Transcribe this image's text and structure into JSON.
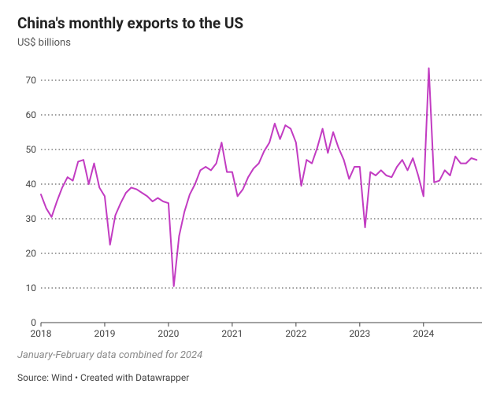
{
  "title": "China's monthly exports to the US",
  "subtitle": "US$ billions",
  "note": "January-February data combined for 2024",
  "source": "Source: Wind • Created with Datawrapper",
  "chart": {
    "type": "line",
    "line_color": "#c23cc2",
    "line_width": 2,
    "background_color": "#ffffff",
    "grid_color": "#000000",
    "grid_style": "dotted",
    "axis_color": "#444444",
    "ylim": [
      0,
      75
    ],
    "yticks": [
      0,
      10,
      20,
      30,
      40,
      50,
      60,
      70
    ],
    "xticks": [
      {
        "label": "2018",
        "x": 0
      },
      {
        "label": "2019",
        "x": 12
      },
      {
        "label": "2020",
        "x": 24
      },
      {
        "label": "2021",
        "x": 36
      },
      {
        "label": "2022",
        "x": 48
      },
      {
        "label": "2023",
        "x": 60
      },
      {
        "label": "2024",
        "x": 72
      }
    ],
    "x_range": [
      0,
      83
    ],
    "data": [
      {
        "x": 0,
        "y": 37
      },
      {
        "x": 1,
        "y": 33
      },
      {
        "x": 2,
        "y": 30.5
      },
      {
        "x": 3,
        "y": 35
      },
      {
        "x": 4,
        "y": 39
      },
      {
        "x": 5,
        "y": 42
      },
      {
        "x": 6,
        "y": 41
      },
      {
        "x": 7,
        "y": 46.5
      },
      {
        "x": 8,
        "y": 47
      },
      {
        "x": 9,
        "y": 40
      },
      {
        "x": 10,
        "y": 46
      },
      {
        "x": 11,
        "y": 39
      },
      {
        "x": 12,
        "y": 36.5
      },
      {
        "x": 13,
        "y": 22.5
      },
      {
        "x": 14,
        "y": 31
      },
      {
        "x": 15,
        "y": 34.5
      },
      {
        "x": 16,
        "y": 37.5
      },
      {
        "x": 17,
        "y": 39
      },
      {
        "x": 18,
        "y": 38.5
      },
      {
        "x": 19,
        "y": 37.5
      },
      {
        "x": 20,
        "y": 36.5
      },
      {
        "x": 21,
        "y": 35
      },
      {
        "x": 22,
        "y": 36
      },
      {
        "x": 23,
        "y": 35
      },
      {
        "x": 24,
        "y": 34.5
      },
      {
        "x": 25,
        "y": 10.5
      },
      {
        "x": 26,
        "y": 25
      },
      {
        "x": 27,
        "y": 32
      },
      {
        "x": 28,
        "y": 37
      },
      {
        "x": 29,
        "y": 40
      },
      {
        "x": 30,
        "y": 44
      },
      {
        "x": 31,
        "y": 45
      },
      {
        "x": 32,
        "y": 44
      },
      {
        "x": 33,
        "y": 46
      },
      {
        "x": 34,
        "y": 52
      },
      {
        "x": 35,
        "y": 43.5
      },
      {
        "x": 36,
        "y": 43.5
      },
      {
        "x": 37,
        "y": 36.5
      },
      {
        "x": 38,
        "y": 38.5
      },
      {
        "x": 39,
        "y": 42
      },
      {
        "x": 40,
        "y": 44.5
      },
      {
        "x": 41,
        "y": 46
      },
      {
        "x": 42,
        "y": 49.5
      },
      {
        "x": 43,
        "y": 52
      },
      {
        "x": 44,
        "y": 57.5
      },
      {
        "x": 45,
        "y": 53
      },
      {
        "x": 46,
        "y": 57
      },
      {
        "x": 47,
        "y": 56
      },
      {
        "x": 48,
        "y": 52
      },
      {
        "x": 49,
        "y": 39.5
      },
      {
        "x": 50,
        "y": 47
      },
      {
        "x": 51,
        "y": 46
      },
      {
        "x": 52,
        "y": 50.5
      },
      {
        "x": 53,
        "y": 56
      },
      {
        "x": 54,
        "y": 49
      },
      {
        "x": 55,
        "y": 55
      },
      {
        "x": 56,
        "y": 50.5
      },
      {
        "x": 57,
        "y": 47
      },
      {
        "x": 58,
        "y": 41.5
      },
      {
        "x": 59,
        "y": 45
      },
      {
        "x": 60,
        "y": 45
      },
      {
        "x": 61,
        "y": 27.5
      },
      {
        "x": 62,
        "y": 43.5
      },
      {
        "x": 63,
        "y": 42.5
      },
      {
        "x": 64,
        "y": 44
      },
      {
        "x": 65,
        "y": 42.5
      },
      {
        "x": 66,
        "y": 42
      },
      {
        "x": 67,
        "y": 45
      },
      {
        "x": 68,
        "y": 47
      },
      {
        "x": 69,
        "y": 44
      },
      {
        "x": 70,
        "y": 47.5
      },
      {
        "x": 71,
        "y": 42.5
      },
      {
        "x": 72,
        "y": 36.5
      },
      {
        "x": 73,
        "y": 73.5
      },
      {
        "x": 74,
        "y": 40.5
      },
      {
        "x": 75,
        "y": 41
      },
      {
        "x": 76,
        "y": 44
      },
      {
        "x": 77,
        "y": 42.5
      },
      {
        "x": 78,
        "y": 48
      },
      {
        "x": 79,
        "y": 46
      },
      {
        "x": 80,
        "y": 46
      },
      {
        "x": 81,
        "y": 47.5
      },
      {
        "x": 82,
        "y": 47
      }
    ]
  }
}
